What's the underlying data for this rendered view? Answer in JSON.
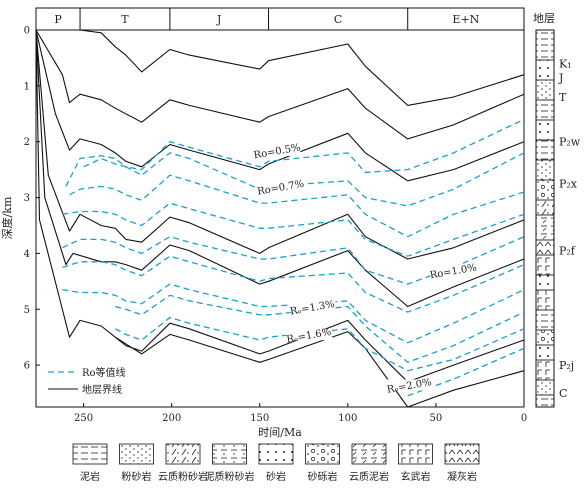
{
  "chart_data": {
    "type": "line",
    "title": "",
    "xlabel": "时间/Ma",
    "ylabel": "深度/km",
    "x_ticks": [
      250,
      200,
      150,
      100,
      50,
      0
    ],
    "y_ticks": [
      0,
      1,
      2,
      3,
      4,
      5,
      6
    ],
    "xlim": [
      277,
      0
    ],
    "ylim": [
      0,
      6.75
    ],
    "legend_position": "bottom-left",
    "legend": [
      {
        "label": "Ro等值线",
        "style": "dashed",
        "color": "#1aa0cf"
      },
      {
        "label": "地层界线",
        "style": "solid",
        "color": "#111111"
      }
    ],
    "periods": [
      {
        "label": "P",
        "start": 277,
        "end": 252
      },
      {
        "label": "T",
        "start": 252,
        "end": 201
      },
      {
        "label": "J",
        "start": 201,
        "end": 145
      },
      {
        "label": "C",
        "start": 145,
        "end": 66
      },
      {
        "label": "E+N",
        "start": 66,
        "end": 0
      }
    ],
    "column_header": "地层",
    "formations": [
      {
        "label": "K₁",
        "depth": 0.6
      },
      {
        "label": "J",
        "depth": 0.85
      },
      {
        "label": "T",
        "depth": 1.2
      },
      {
        "label": "P₂w",
        "depth": 2.0
      },
      {
        "label": "P₂x",
        "depth": 2.75
      },
      {
        "label": "P₂f",
        "depth": 3.95
      },
      {
        "label": "P₂j",
        "depth": 6.0
      },
      {
        "label": "C",
        "depth": 6.5
      }
    ],
    "boundaries": [
      {
        "name": "b1",
        "points": [
          [
            277,
            0
          ],
          [
            260,
            0
          ],
          [
            258,
            0
          ],
          [
            252,
            0
          ],
          [
            240,
            0.05
          ],
          [
            232,
            0.3
          ],
          [
            226,
            0.45
          ],
          [
            217,
            0.75
          ],
          [
            201,
            0.35
          ],
          [
            190,
            0.45
          ],
          [
            150,
            0.7
          ],
          [
            145,
            0.55
          ],
          [
            100,
            0.25
          ],
          [
            90,
            0.65
          ],
          [
            66,
            1.35
          ],
          [
            40,
            1.2
          ],
          [
            0,
            0.8
          ]
        ]
      },
      {
        "name": "b2",
        "points": [
          [
            277,
            0
          ],
          [
            262,
            0.8
          ],
          [
            258,
            1.3
          ],
          [
            252,
            1.15
          ],
          [
            240,
            1.25
          ],
          [
            232,
            1.4
          ],
          [
            226,
            1.5
          ],
          [
            217,
            1.65
          ],
          [
            201,
            1.25
          ],
          [
            190,
            1.35
          ],
          [
            150,
            1.65
          ],
          [
            145,
            1.55
          ],
          [
            100,
            1.05
          ],
          [
            90,
            1.4
          ],
          [
            66,
            1.95
          ],
          [
            40,
            1.7
          ],
          [
            0,
            1.15
          ]
        ]
      },
      {
        "name": "b3",
        "points": [
          [
            277,
            0
          ],
          [
            266,
            1.5
          ],
          [
            258,
            2.15
          ],
          [
            252,
            1.95
          ],
          [
            240,
            2.05
          ],
          [
            232,
            2.2
          ],
          [
            226,
            2.35
          ],
          [
            217,
            2.45
          ],
          [
            201,
            2.05
          ],
          [
            190,
            2.15
          ],
          [
            150,
            2.5
          ],
          [
            145,
            2.4
          ],
          [
            100,
            1.85
          ],
          [
            90,
            2.2
          ],
          [
            66,
            2.7
          ],
          [
            40,
            2.5
          ],
          [
            0,
            2.0
          ]
        ]
      },
      {
        "name": "b4",
        "points": [
          [
            277,
            0
          ],
          [
            270,
            2.6
          ],
          [
            258,
            3.6
          ],
          [
            252,
            3.3
          ],
          [
            240,
            3.5
          ],
          [
            232,
            3.55
          ],
          [
            226,
            3.75
          ],
          [
            217,
            3.8
          ],
          [
            201,
            3.35
          ],
          [
            190,
            3.45
          ],
          [
            150,
            4.0
          ],
          [
            145,
            3.9
          ],
          [
            100,
            3.3
          ],
          [
            90,
            3.7
          ],
          [
            66,
            4.1
          ],
          [
            40,
            3.9
          ],
          [
            0,
            3.4
          ]
        ]
      },
      {
        "name": "b5",
        "points": [
          [
            277,
            0
          ],
          [
            272,
            3.0
          ],
          [
            260,
            4.2
          ],
          [
            256,
            4.0
          ],
          [
            240,
            4.15
          ],
          [
            232,
            4.15
          ],
          [
            226,
            4.2
          ],
          [
            217,
            4.3
          ],
          [
            201,
            3.85
          ],
          [
            190,
            3.95
          ],
          [
            150,
            4.55
          ],
          [
            145,
            4.5
          ],
          [
            100,
            3.95
          ],
          [
            90,
            4.3
          ],
          [
            66,
            4.95
          ],
          [
            40,
            4.6
          ],
          [
            0,
            4.1
          ]
        ]
      },
      {
        "name": "b6",
        "points": [
          [
            277,
            0
          ],
          [
            275,
            3.4
          ],
          [
            258,
            5.5
          ],
          [
            252,
            5.2
          ],
          [
            240,
            5.3
          ],
          [
            232,
            5.5
          ],
          [
            226,
            5.65
          ],
          [
            217,
            5.75
          ],
          [
            201,
            5.25
          ],
          [
            190,
            5.35
          ],
          [
            150,
            5.8
          ],
          [
            145,
            5.75
          ],
          [
            100,
            5.2
          ],
          [
            90,
            5.55
          ],
          [
            66,
            6.3
          ],
          [
            40,
            6.0
          ],
          [
            0,
            5.55
          ]
        ]
      },
      {
        "name": "b7",
        "points": [
          [
            232,
            5.5
          ],
          [
            217,
            5.8
          ],
          [
            201,
            5.45
          ],
          [
            190,
            5.55
          ],
          [
            150,
            5.95
          ],
          [
            145,
            5.9
          ],
          [
            100,
            5.4
          ],
          [
            90,
            5.7
          ],
          [
            66,
            6.75
          ],
          [
            40,
            6.45
          ],
          [
            0,
            6.1
          ]
        ]
      }
    ],
    "ro_isolines": [
      {
        "label": "Ro=0.5%",
        "label_x": 140,
        "label_y": 2.2,
        "points": [
          [
            250,
            2.45
          ],
          [
            240,
            2.3
          ],
          [
            232,
            2.4
          ],
          [
            226,
            2.45
          ],
          [
            217,
            2.5
          ],
          [
            201,
            2.0
          ],
          [
            190,
            2.1
          ],
          [
            150,
            2.45
          ],
          [
            145,
            2.35
          ],
          [
            100,
            2.2
          ],
          [
            90,
            2.55
          ],
          [
            66,
            2.5
          ],
          [
            40,
            2.2
          ],
          [
            0,
            1.6
          ]
        ]
      },
      {
        "label": "Ro=0.7%",
        "label_x": 138,
        "label_y": 2.85,
        "points": [
          [
            260,
            2.8
          ],
          [
            252,
            2.3
          ],
          [
            240,
            2.25
          ],
          [
            232,
            2.3
          ],
          [
            226,
            2.45
          ],
          [
            217,
            2.6
          ],
          [
            201,
            2.2
          ],
          [
            190,
            2.3
          ],
          [
            150,
            2.85
          ],
          [
            145,
            2.8
          ],
          [
            100,
            2.7
          ],
          [
            90,
            3.0
          ],
          [
            66,
            3.15
          ],
          [
            40,
            2.85
          ],
          [
            0,
            2.2
          ]
        ]
      },
      {
        "label": "",
        "label_x": 0,
        "label_y": 0,
        "points": [
          [
            258,
            2.95
          ],
          [
            252,
            2.85
          ],
          [
            240,
            2.8
          ],
          [
            232,
            2.85
          ],
          [
            226,
            2.95
          ],
          [
            217,
            3.05
          ],
          [
            201,
            2.6
          ],
          [
            190,
            2.7
          ],
          [
            150,
            3.1
          ],
          [
            145,
            3.1
          ],
          [
            100,
            2.95
          ],
          [
            90,
            3.3
          ],
          [
            66,
            3.7
          ],
          [
            40,
            3.3
          ],
          [
            0,
            2.9
          ]
        ]
      },
      {
        "label": "",
        "label_x": 0,
        "label_y": 0,
        "points": [
          [
            262,
            3.3
          ],
          [
            252,
            3.25
          ],
          [
            240,
            3.25
          ],
          [
            232,
            3.3
          ],
          [
            226,
            3.4
          ],
          [
            217,
            3.5
          ],
          [
            201,
            3.1
          ],
          [
            190,
            3.2
          ],
          [
            150,
            3.55
          ],
          [
            145,
            3.55
          ],
          [
            100,
            3.4
          ],
          [
            90,
            3.75
          ],
          [
            66,
            4.05
          ],
          [
            40,
            3.75
          ],
          [
            0,
            3.3
          ]
        ]
      },
      {
        "label": "Ro=1.0%",
        "label_x": 40,
        "label_y": 4.35,
        "points": [
          [
            262,
            3.9
          ],
          [
            252,
            3.75
          ],
          [
            240,
            3.75
          ],
          [
            232,
            3.8
          ],
          [
            226,
            3.9
          ],
          [
            217,
            4.0
          ],
          [
            201,
            3.7
          ],
          [
            190,
            3.8
          ],
          [
            150,
            4.1
          ],
          [
            145,
            4.1
          ],
          [
            100,
            3.9
          ],
          [
            90,
            4.3
          ],
          [
            66,
            4.55
          ],
          [
            40,
            4.25
          ],
          [
            0,
            3.7
          ]
        ]
      },
      {
        "label": "",
        "label_x": 0,
        "label_y": 0,
        "points": [
          [
            262,
            4.25
          ],
          [
            252,
            4.15
          ],
          [
            240,
            4.15
          ],
          [
            232,
            4.2
          ],
          [
            226,
            4.3
          ],
          [
            217,
            4.4
          ],
          [
            201,
            4.05
          ],
          [
            190,
            4.15
          ],
          [
            150,
            4.5
          ],
          [
            145,
            4.45
          ],
          [
            100,
            4.35
          ],
          [
            90,
            4.7
          ],
          [
            66,
            5.05
          ],
          [
            40,
            4.75
          ],
          [
            0,
            4.2
          ]
        ]
      },
      {
        "label": "",
        "label_x": 0,
        "label_y": 0,
        "points": [
          [
            262,
            4.65
          ],
          [
            252,
            4.7
          ],
          [
            240,
            4.7
          ],
          [
            232,
            4.75
          ],
          [
            226,
            4.85
          ],
          [
            217,
            4.9
          ],
          [
            201,
            4.55
          ],
          [
            190,
            4.65
          ],
          [
            150,
            4.95
          ],
          [
            145,
            4.95
          ],
          [
            100,
            4.85
          ],
          [
            90,
            5.2
          ],
          [
            66,
            5.6
          ],
          [
            40,
            5.25
          ],
          [
            0,
            4.65
          ]
        ]
      },
      {
        "label": "Rₒ=1.3%",
        "label_x": 120,
        "label_y": 5.0,
        "points": [
          [
            232,
            4.95
          ],
          [
            226,
            5.0
          ],
          [
            217,
            5.1
          ],
          [
            201,
            4.75
          ],
          [
            190,
            4.85
          ],
          [
            150,
            5.1
          ],
          [
            145,
            5.1
          ],
          [
            100,
            4.95
          ],
          [
            90,
            5.3
          ],
          [
            66,
            5.95
          ],
          [
            40,
            5.65
          ],
          [
            0,
            5.05
          ]
        ]
      },
      {
        "label": "Rₒ=1.6%",
        "label_x": 122,
        "label_y": 5.5,
        "points": [
          [
            232,
            5.35
          ],
          [
            226,
            5.45
          ],
          [
            217,
            5.55
          ],
          [
            201,
            5.15
          ],
          [
            190,
            5.25
          ],
          [
            150,
            5.55
          ],
          [
            145,
            5.5
          ],
          [
            100,
            5.35
          ],
          [
            90,
            5.7
          ],
          [
            66,
            6.1
          ],
          [
            40,
            5.9
          ],
          [
            0,
            5.35
          ]
        ]
      },
      {
        "label": "Rₒ=2.0%",
        "label_x": 65,
        "label_y": 6.4,
        "points": [
          [
            66,
            6.55
          ],
          [
            40,
            6.25
          ],
          [
            0,
            5.7
          ]
        ]
      }
    ]
  },
  "lithology_legend": [
    {
      "label": "泥岩",
      "pattern": "mudstone"
    },
    {
      "label": "粉砂岩",
      "pattern": "siltstone"
    },
    {
      "label": "云质粉砂岩",
      "pattern": "dolo-siltstone"
    },
    {
      "label": "泥质粉砂岩",
      "pattern": "muddy-siltstone"
    },
    {
      "label": "砂岩",
      "pattern": "sandstone"
    },
    {
      "label": "砂砾岩",
      "pattern": "conglomerate"
    },
    {
      "label": "云质泥岩",
      "pattern": "dolo-mudstone"
    },
    {
      "label": "玄武岩",
      "pattern": "basalt"
    },
    {
      "label": "凝灰岩",
      "pattern": "tuff"
    }
  ]
}
